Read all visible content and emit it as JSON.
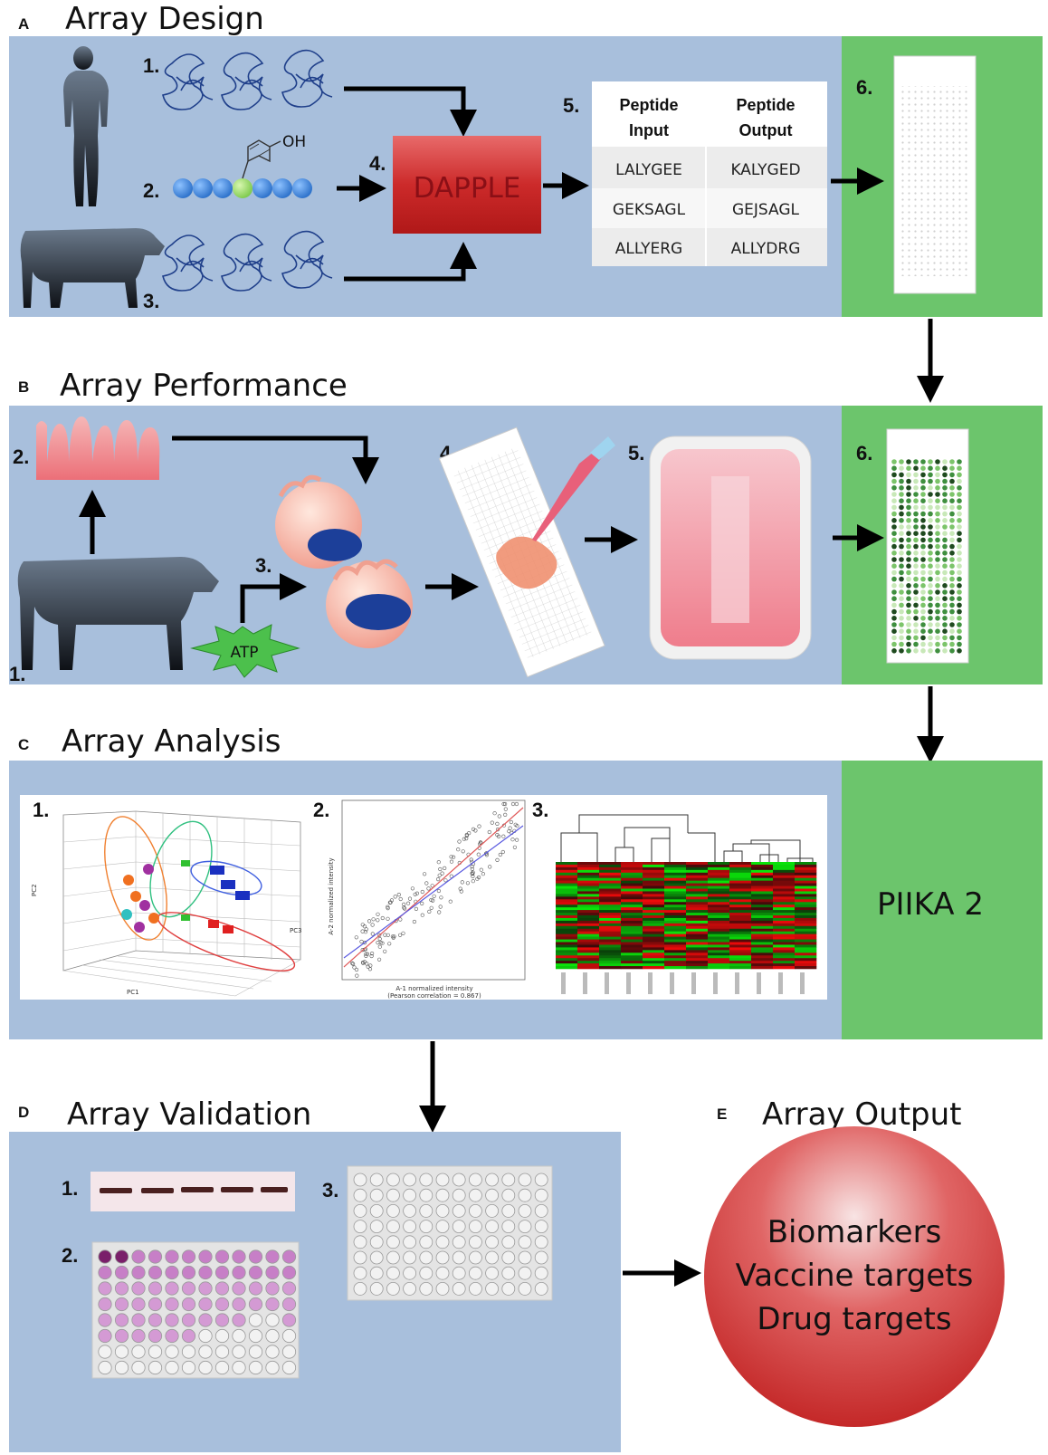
{
  "sections": {
    "a": {
      "letter": "A",
      "title": "Array Design"
    },
    "b": {
      "letter": "B",
      "title": "Array Performance"
    },
    "c": {
      "letter": "C",
      "title": "Array Analysis"
    },
    "d": {
      "letter": "D",
      "title": "Array Validation"
    },
    "e": {
      "letter": "E",
      "title": "Array Output"
    }
  },
  "design": {
    "steps": [
      "1.",
      "2.",
      "3.",
      "4.",
      "5.",
      "6."
    ],
    "hydroxyl": "OH",
    "process_box": "DAPPLE",
    "table": {
      "headers": [
        [
          "Peptide",
          "Input"
        ],
        [
          "Peptide",
          "Output"
        ]
      ],
      "rows": [
        [
          "LALYGEE",
          "KALYGED"
        ],
        [
          "GEKSAGL",
          "GEJSAGL"
        ],
        [
          "ALLYERG",
          "ALLYDRG"
        ]
      ]
    }
  },
  "performance": {
    "steps": [
      "1.",
      "2.",
      "3.",
      "4.",
      "5.",
      "6."
    ],
    "atp": "ATP"
  },
  "analysis": {
    "steps": [
      "1.",
      "2.",
      "3."
    ],
    "software": "PIIKA 2",
    "pca_axes": {
      "x": "PC1",
      "y": "PC2",
      "z": "PC3"
    },
    "scatter": {
      "xlabel": "A-1 normalized intensity",
      "caption": "(Pearson correlation = 0.867)",
      "ylabel": "A-2 normalized intensity"
    }
  },
  "validation": {
    "steps": [
      "1.",
      "2.",
      "3."
    ]
  },
  "output": {
    "items": [
      "Biomarkers",
      "Vaccine targets",
      "Drug targets"
    ]
  },
  "colors": {
    "panel_blue": "#a8bfdc",
    "panel_green": "#6cc56c",
    "dapple_red": "#cc2a2a",
    "output_red": "#d43a3a"
  }
}
